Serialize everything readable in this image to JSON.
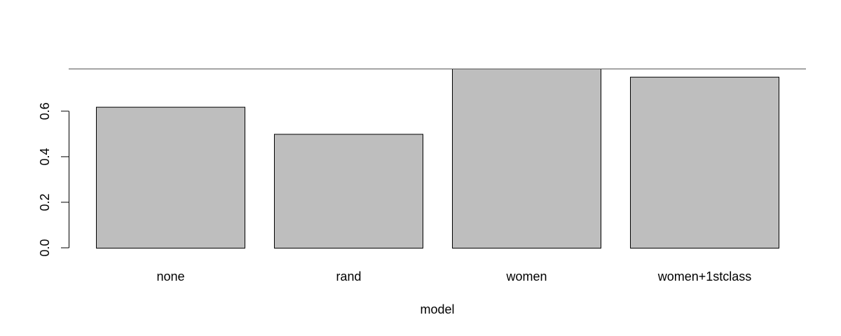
{
  "chart_data": {
    "type": "bar",
    "categories": [
      "none",
      "rand",
      "women",
      "women+1stclass"
    ],
    "values": [
      0.619,
      0.5,
      0.787,
      0.751
    ],
    "reference_line": 0.787,
    "xlabel": "model",
    "ylabel": "",
    "ylim": [
      0,
      0.787
    ],
    "yticks": [
      {
        "value": 0.0,
        "label": "0.0"
      },
      {
        "value": 0.2,
        "label": "0.2"
      },
      {
        "value": 0.4,
        "label": "0.4"
      },
      {
        "value": 0.6,
        "label": "0.6"
      }
    ],
    "bar_color": "#bebebe",
    "grid": false,
    "legend": "none"
  }
}
